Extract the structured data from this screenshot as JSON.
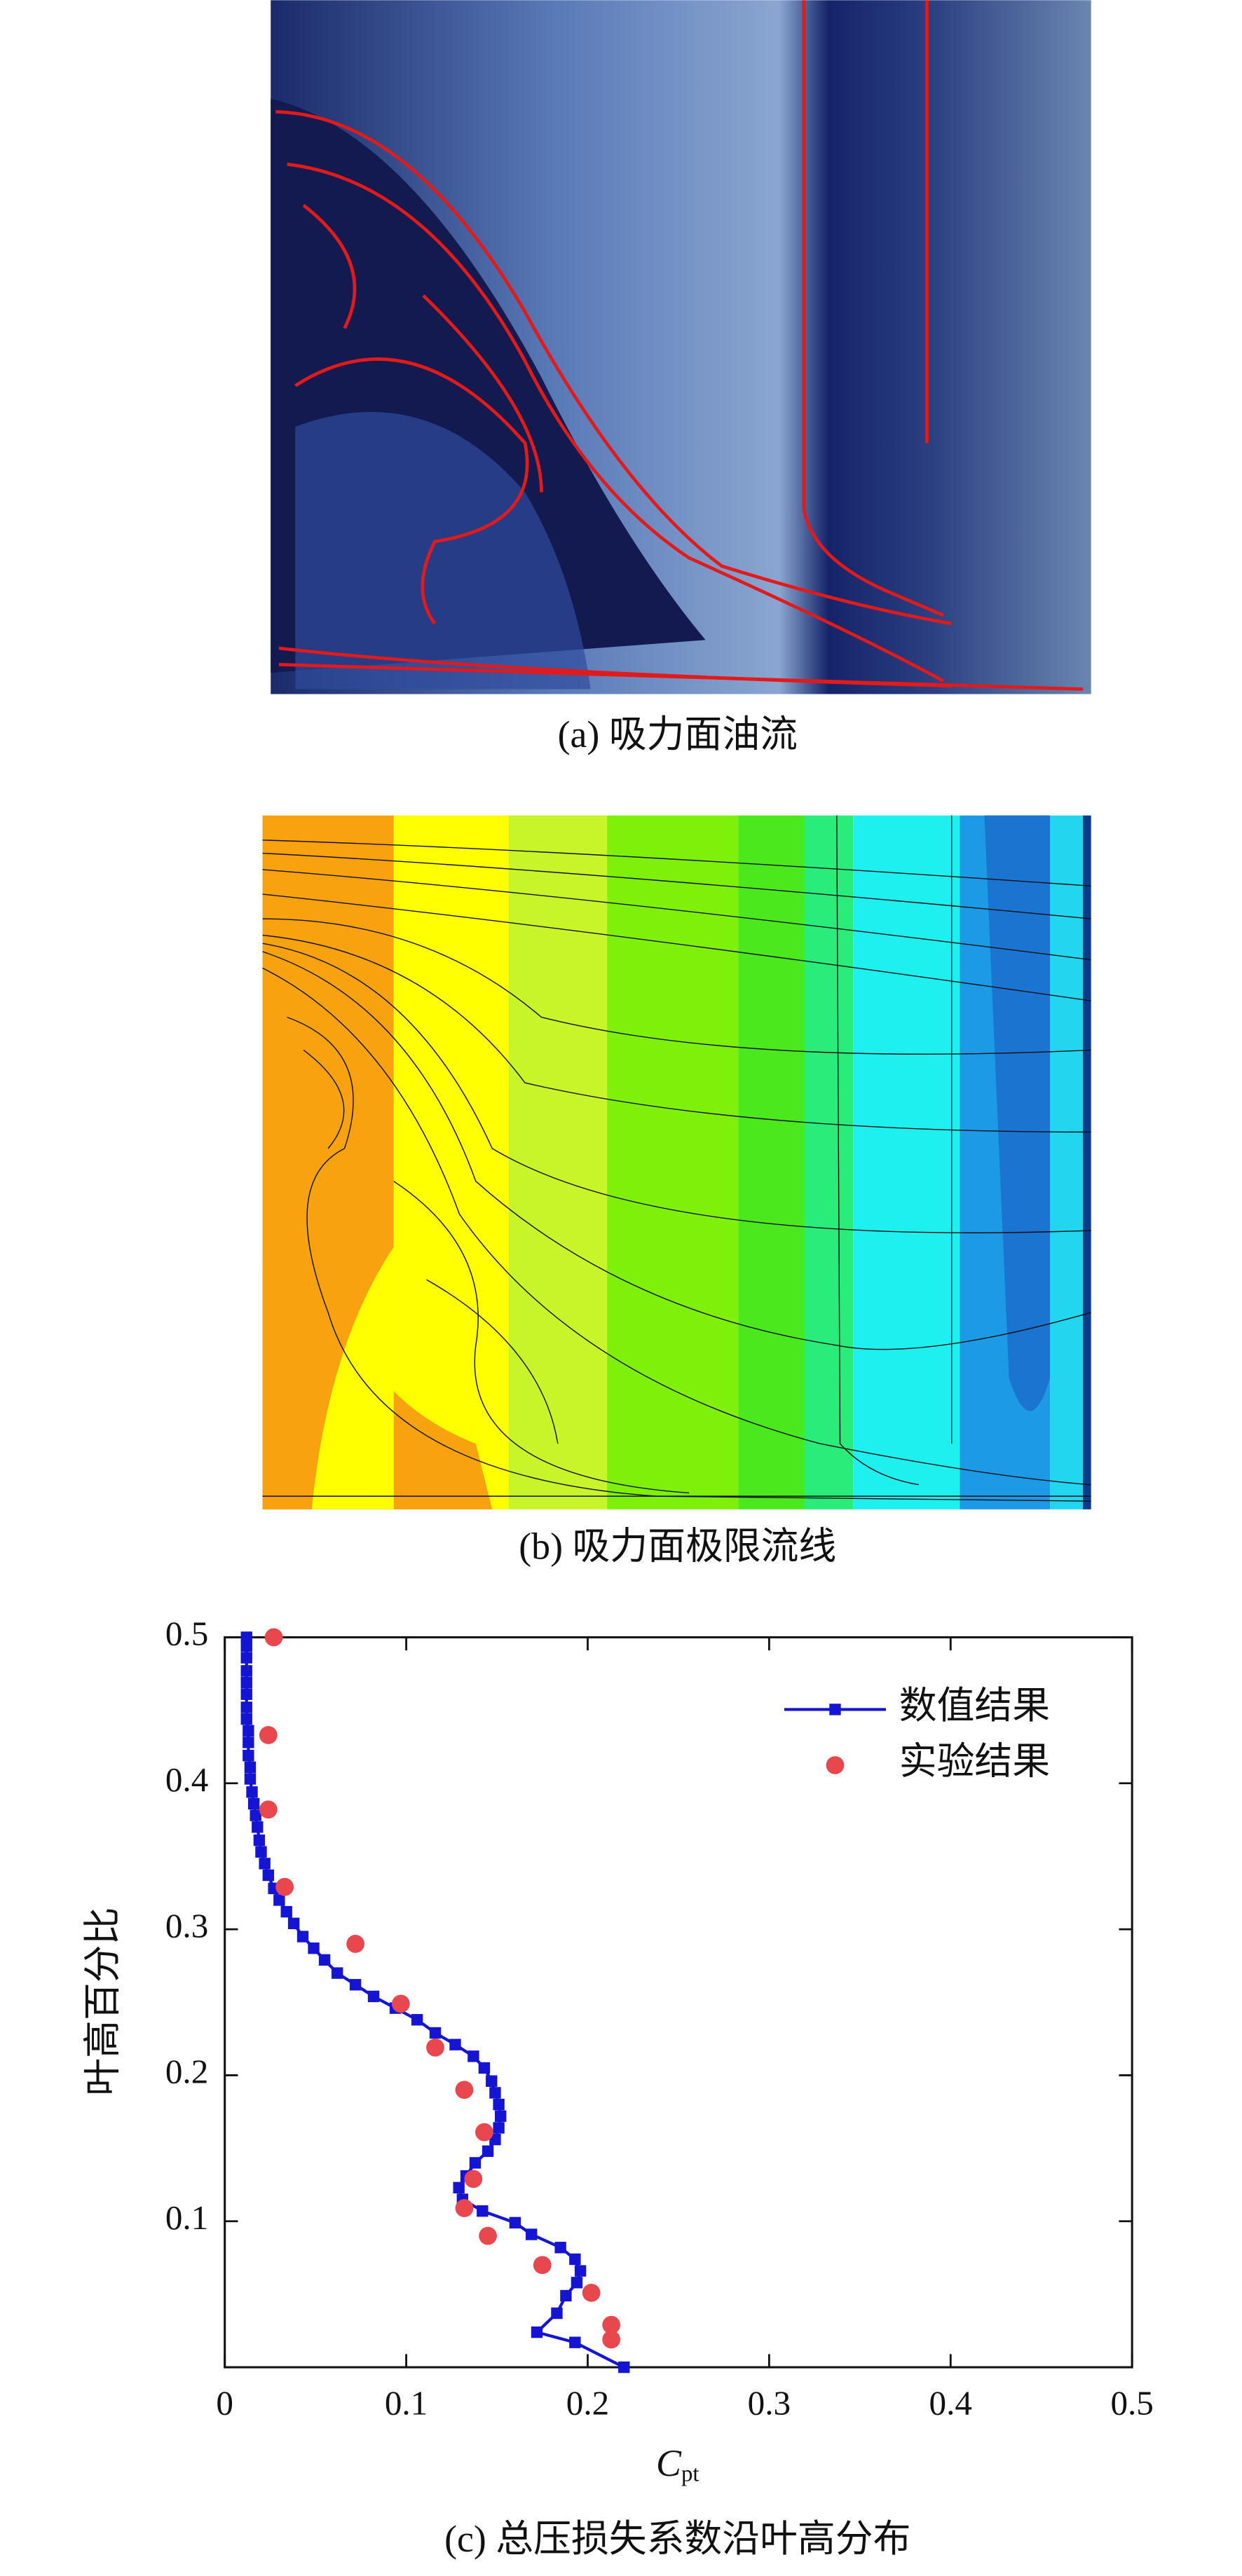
{
  "captions": [
    "(a) 吸力面油流",
    "(b) 吸力面极限流线"
  ],
  "chart_data": {
    "type": "scatter",
    "caption": "(c) 总压损失系数沿叶高分布",
    "y_label": "叶高百分比",
    "x_label": {
      "symbol": "C",
      "subscript": "pt"
    },
    "xlim": [
      0,
      0.5
    ],
    "xticks": [
      0,
      0.1,
      0.2,
      0.3,
      0.4,
      0.5
    ],
    "ylim": [
      0,
      0.5
    ],
    "yticks": [
      0.1,
      0.2,
      0.3,
      0.4,
      0.5
    ],
    "legend": "upper right",
    "series": [
      {
        "name": "数值结果",
        "color": "#1414d2",
        "marker": "square",
        "line": true,
        "x": [
          0.22,
          0.193,
          0.172,
          0.183,
          0.188,
          0.194,
          0.196,
          0.193,
          0.185,
          0.169,
          0.16,
          0.142,
          0.131,
          0.129,
          0.133,
          0.138,
          0.145,
          0.149,
          0.151,
          0.152,
          0.151,
          0.149,
          0.147,
          0.143,
          0.137,
          0.127,
          0.116,
          0.106,
          0.094,
          0.082,
          0.072,
          0.062,
          0.055,
          0.049,
          0.043,
          0.038,
          0.034,
          0.03,
          0.027,
          0.024,
          0.022,
          0.02,
          0.019,
          0.018,
          0.017,
          0.016,
          0.015,
          0.014,
          0.014,
          0.013,
          0.013,
          0.013,
          0.012,
          0.012,
          0.012,
          0.012,
          0.012,
          0.012,
          0.012,
          0.012
        ],
        "values": [
          0.0,
          0.017,
          0.024,
          0.037,
          0.049,
          0.058,
          0.066,
          0.074,
          0.082,
          0.091,
          0.099,
          0.107,
          0.115,
          0.123,
          0.131,
          0.14,
          0.148,
          0.156,
          0.164,
          0.172,
          0.18,
          0.188,
          0.196,
          0.205,
          0.213,
          0.221,
          0.229,
          0.238,
          0.246,
          0.254,
          0.262,
          0.27,
          0.279,
          0.287,
          0.295,
          0.304,
          0.312,
          0.32,
          0.328,
          0.337,
          0.345,
          0.353,
          0.361,
          0.37,
          0.378,
          0.386,
          0.394,
          0.403,
          0.411,
          0.419,
          0.428,
          0.436,
          0.444,
          0.452,
          0.461,
          0.469,
          0.477,
          0.486,
          0.494,
          0.5
        ]
      },
      {
        "name": "实验结果",
        "color": "#e8474d",
        "marker": "circle",
        "line": false,
        "x": [
          0.027,
          0.024,
          0.024,
          0.033,
          0.072,
          0.097,
          0.116,
          0.132,
          0.143,
          0.137,
          0.132,
          0.145,
          0.175,
          0.202,
          0.213,
          0.213
        ],
        "values": [
          0.5,
          0.433,
          0.382,
          0.329,
          0.29,
          0.249,
          0.219,
          0.19,
          0.161,
          0.129,
          0.109,
          0.09,
          0.07,
          0.051,
          0.029,
          0.019
        ]
      }
    ]
  }
}
